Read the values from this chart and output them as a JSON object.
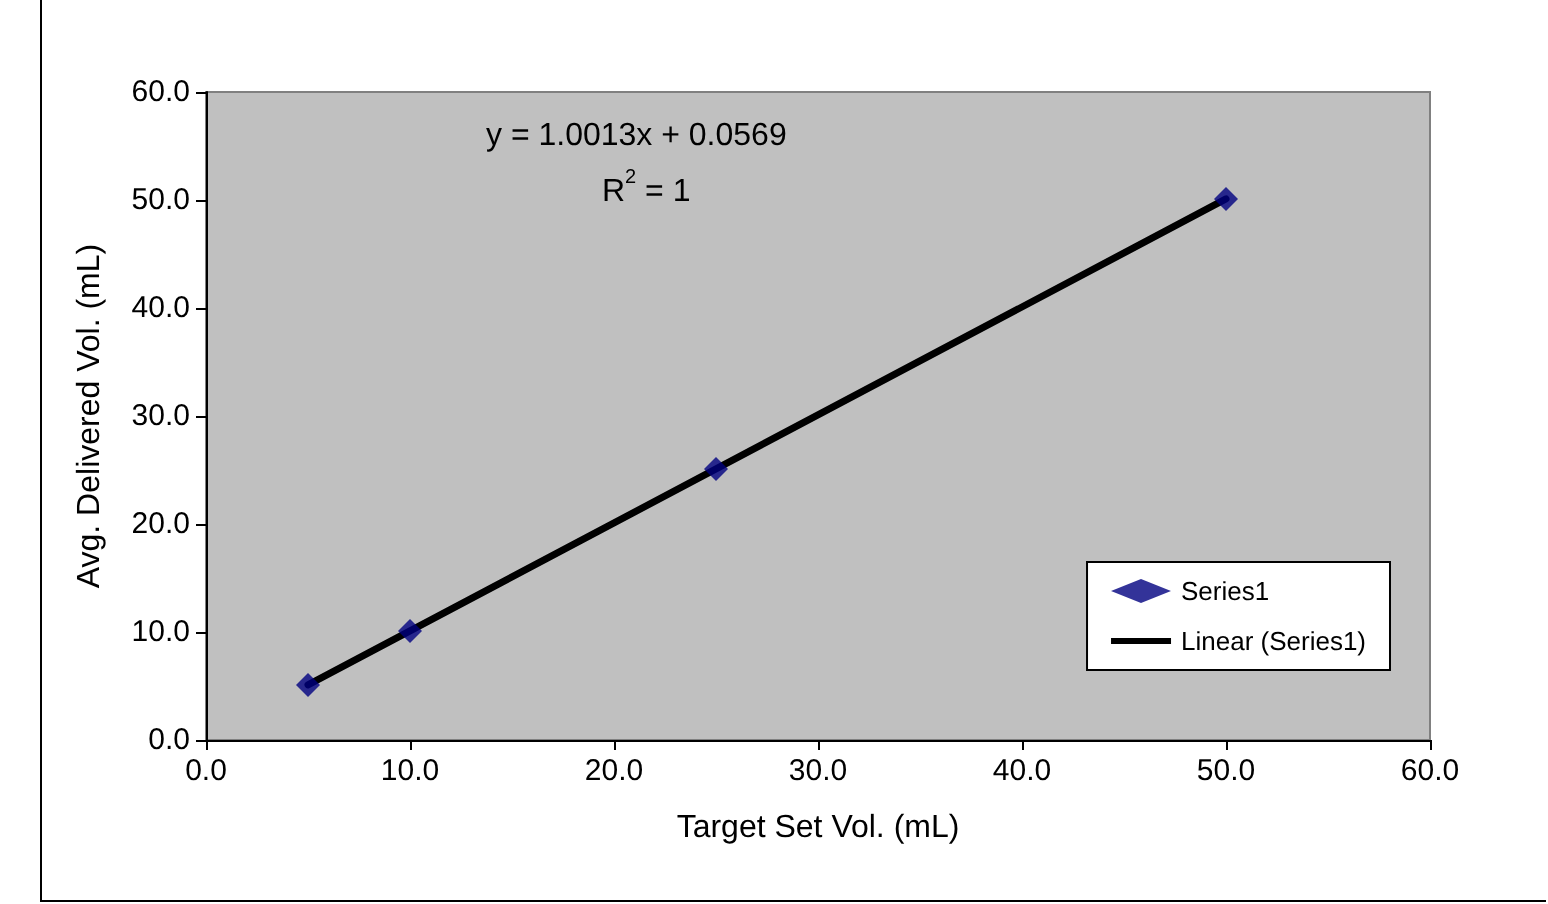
{
  "chart_data": {
    "type": "scatter",
    "xlabel": "Target Set Vol. (mL)",
    "ylabel": "Avg. Delivered Vol. (mL)",
    "annotations": [
      "y = 1.0013x + 0.0569",
      "R$^{2}$ = 1"
    ],
    "series": [
      {
        "name": "Series1",
        "color": "#000080",
        "marker": "diamond",
        "x": [
          5,
          10,
          25,
          50
        ],
        "values": [
          5.1,
          10.1,
          25.1,
          50.1
        ]
      },
      {
        "name": "Linear (Series1)",
        "type": "line",
        "color": "#000000",
        "marker": "none",
        "x": [
          5,
          50
        ],
        "values": [
          5.1,
          50.1
        ]
      }
    ],
    "xlim": [
      0,
      60
    ],
    "xticks": [
      {
        "value": 0,
        "label": "0.0"
      },
      {
        "value": 10,
        "label": "10.0"
      },
      {
        "value": 20,
        "label": "20.0"
      },
      {
        "value": 30,
        "label": "30.0"
      },
      {
        "value": 40,
        "label": "40.0"
      },
      {
        "value": 50,
        "label": "50.0"
      },
      {
        "value": 60,
        "label": "60.0"
      }
    ],
    "ylim": [
      0,
      60
    ],
    "yticks": [
      {
        "value": 0,
        "label": "0.0"
      },
      {
        "value": 10,
        "label": "10.0"
      },
      {
        "value": 20,
        "label": "20.0"
      },
      {
        "value": 30,
        "label": "30.0"
      },
      {
        "value": 40,
        "label": "40.0"
      },
      {
        "value": 50,
        "label": "50.0"
      },
      {
        "value": 60,
        "label": "60.0"
      }
    ],
    "grid": false,
    "legend": "bottom right"
  }
}
